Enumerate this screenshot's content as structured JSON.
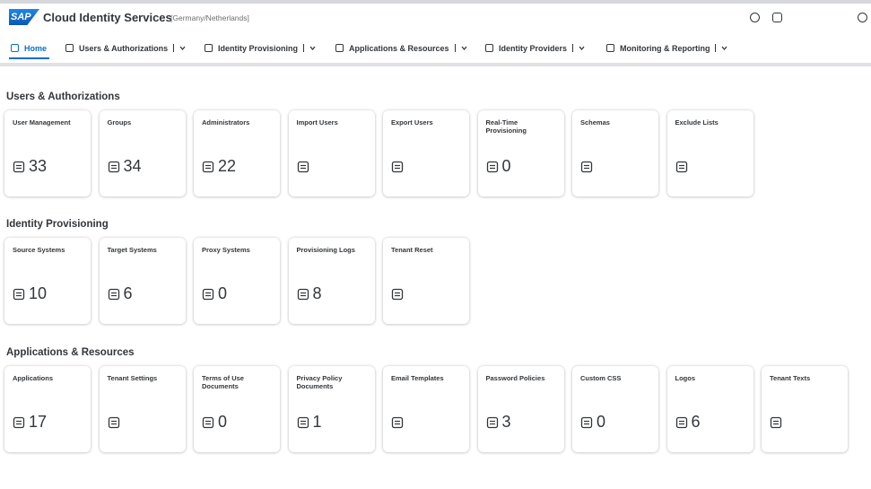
{
  "header": {
    "logo": "SAP",
    "title": "Cloud Identity Services",
    "region": "[Germany/Netherlands]"
  },
  "nav": [
    "Home",
    "Users & Authorizations",
    "Identity Provisioning",
    "Applications & Resources",
    "Identity Providers",
    "Monitoring & Reporting"
  ],
  "sections": [
    {
      "title": "Users & Authorizations",
      "tiles": [
        {
          "label": "User Management",
          "count": 33
        },
        {
          "label": "Groups",
          "count": 34
        },
        {
          "label": "Administrators",
          "count": 22
        },
        {
          "label": "Import Users"
        },
        {
          "label": "Export Users"
        },
        {
          "label": "Real-Time Provisioning",
          "count": 0
        },
        {
          "label": "Schemas"
        },
        {
          "label": "Exclude Lists"
        }
      ]
    },
    {
      "title": "Identity Provisioning",
      "tiles": [
        {
          "label": "Source Systems",
          "count": 10
        },
        {
          "label": "Target Systems",
          "count": 6
        },
        {
          "label": "Proxy Systems",
          "count": 0
        },
        {
          "label": "Provisioning Logs",
          "count": 8
        },
        {
          "label": "Tenant Reset"
        }
      ]
    },
    {
      "title": "Applications & Resources",
      "tiles": [
        {
          "label": "Applications",
          "count": 17
        },
        {
          "label": "Tenant Settings"
        },
        {
          "label": "Terms of Use Documents",
          "count": 0
        },
        {
          "label": "Privacy Policy Documents",
          "count": 1
        },
        {
          "label": "Email Templates"
        },
        {
          "label": "Password Policies",
          "count": 3
        },
        {
          "label": "Custom CSS",
          "count": 0
        },
        {
          "label": "Logos",
          "count": 6
        },
        {
          "label": "Tenant Texts"
        }
      ]
    }
  ]
}
